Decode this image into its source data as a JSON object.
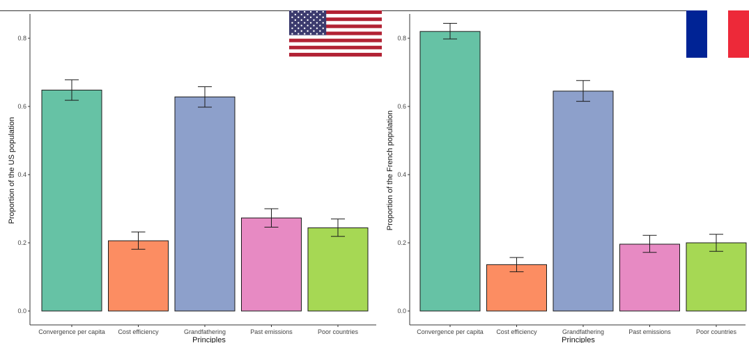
{
  "chart_data": [
    {
      "type": "bar",
      "title": "",
      "xlabel": "Principles",
      "ylabel": "Proportion of the US population",
      "categories": [
        "Convergence per capita",
        "Cost efficiency",
        "Grandfathering",
        "Past emissions",
        "Poor countries"
      ],
      "values": [
        0.648,
        0.206,
        0.628,
        0.273,
        0.244
      ],
      "error_low": [
        0.618,
        0.181,
        0.598,
        0.246,
        0.219
      ],
      "error_high": [
        0.678,
        0.232,
        0.658,
        0.3,
        0.27
      ],
      "colors": [
        "#66c2a5",
        "#fc8d62",
        "#8da0cb",
        "#e78ac3",
        "#a6d854"
      ],
      "ylim": [
        0,
        0.88
      ],
      "yticks": [
        0.0,
        0.2,
        0.4,
        0.6,
        0.8
      ],
      "ytick_labels": [
        "0.0",
        "0.2",
        "0.4",
        "0.6",
        "0.8"
      ],
      "grid": false,
      "flag": "us-flag"
    },
    {
      "type": "bar",
      "title": "",
      "xlabel": "Principles",
      "ylabel": "Proportion of the French population",
      "categories": [
        "Convergence per capita",
        "Cost efficiency",
        "Grandfathering",
        "Past emissions",
        "Poor countries"
      ],
      "values": [
        0.82,
        0.136,
        0.645,
        0.196,
        0.2
      ],
      "error_low": [
        0.798,
        0.115,
        0.615,
        0.172,
        0.175
      ],
      "error_high": [
        0.844,
        0.157,
        0.676,
        0.222,
        0.225
      ],
      "colors": [
        "#66c2a5",
        "#fc8d62",
        "#8da0cb",
        "#e78ac3",
        "#a6d854"
      ],
      "ylim": [
        0,
        0.88
      ],
      "yticks": [
        0.0,
        0.2,
        0.4,
        0.6,
        0.8
      ],
      "ytick_labels": [
        "0.0",
        "0.2",
        "0.4",
        "0.6",
        "0.8"
      ],
      "grid": false,
      "flag": "france-flag"
    }
  ]
}
